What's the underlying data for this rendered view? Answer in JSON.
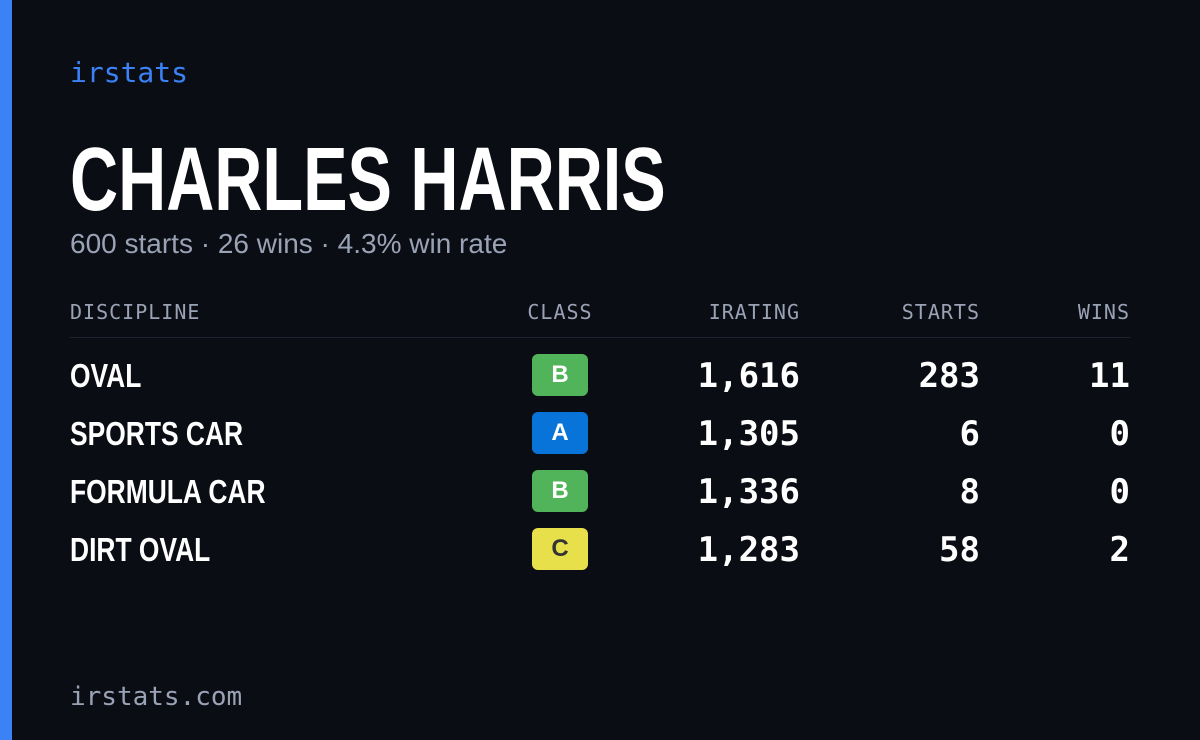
{
  "brand": "irstats",
  "title": "CHARLES HARRIS",
  "subtitle": "600 starts · 26 wins · 4.3% win rate",
  "table": {
    "headers": [
      "DISCIPLINE",
      "CLASS",
      "IRATING",
      "STARTS",
      "WINS"
    ],
    "rows": [
      [
        "OVAL",
        "B",
        "1,616",
        "283",
        "11"
      ],
      [
        "SPORTS CAR",
        "A",
        "1,305",
        "6",
        "0"
      ],
      [
        "FORMULA CAR",
        "B",
        "1,336",
        "8",
        "0"
      ],
      [
        "DIRT OVAL",
        "C",
        "1,283",
        "58",
        "2"
      ]
    ],
    "class_colors": {
      "A": "#0874d9",
      "B": "#52b45a",
      "C": "#e8e04a"
    },
    "class_text_colors": {
      "A": "#ffffff",
      "B": "#ffffff",
      "C": "#333333"
    }
  },
  "footer": "irstats.com"
}
